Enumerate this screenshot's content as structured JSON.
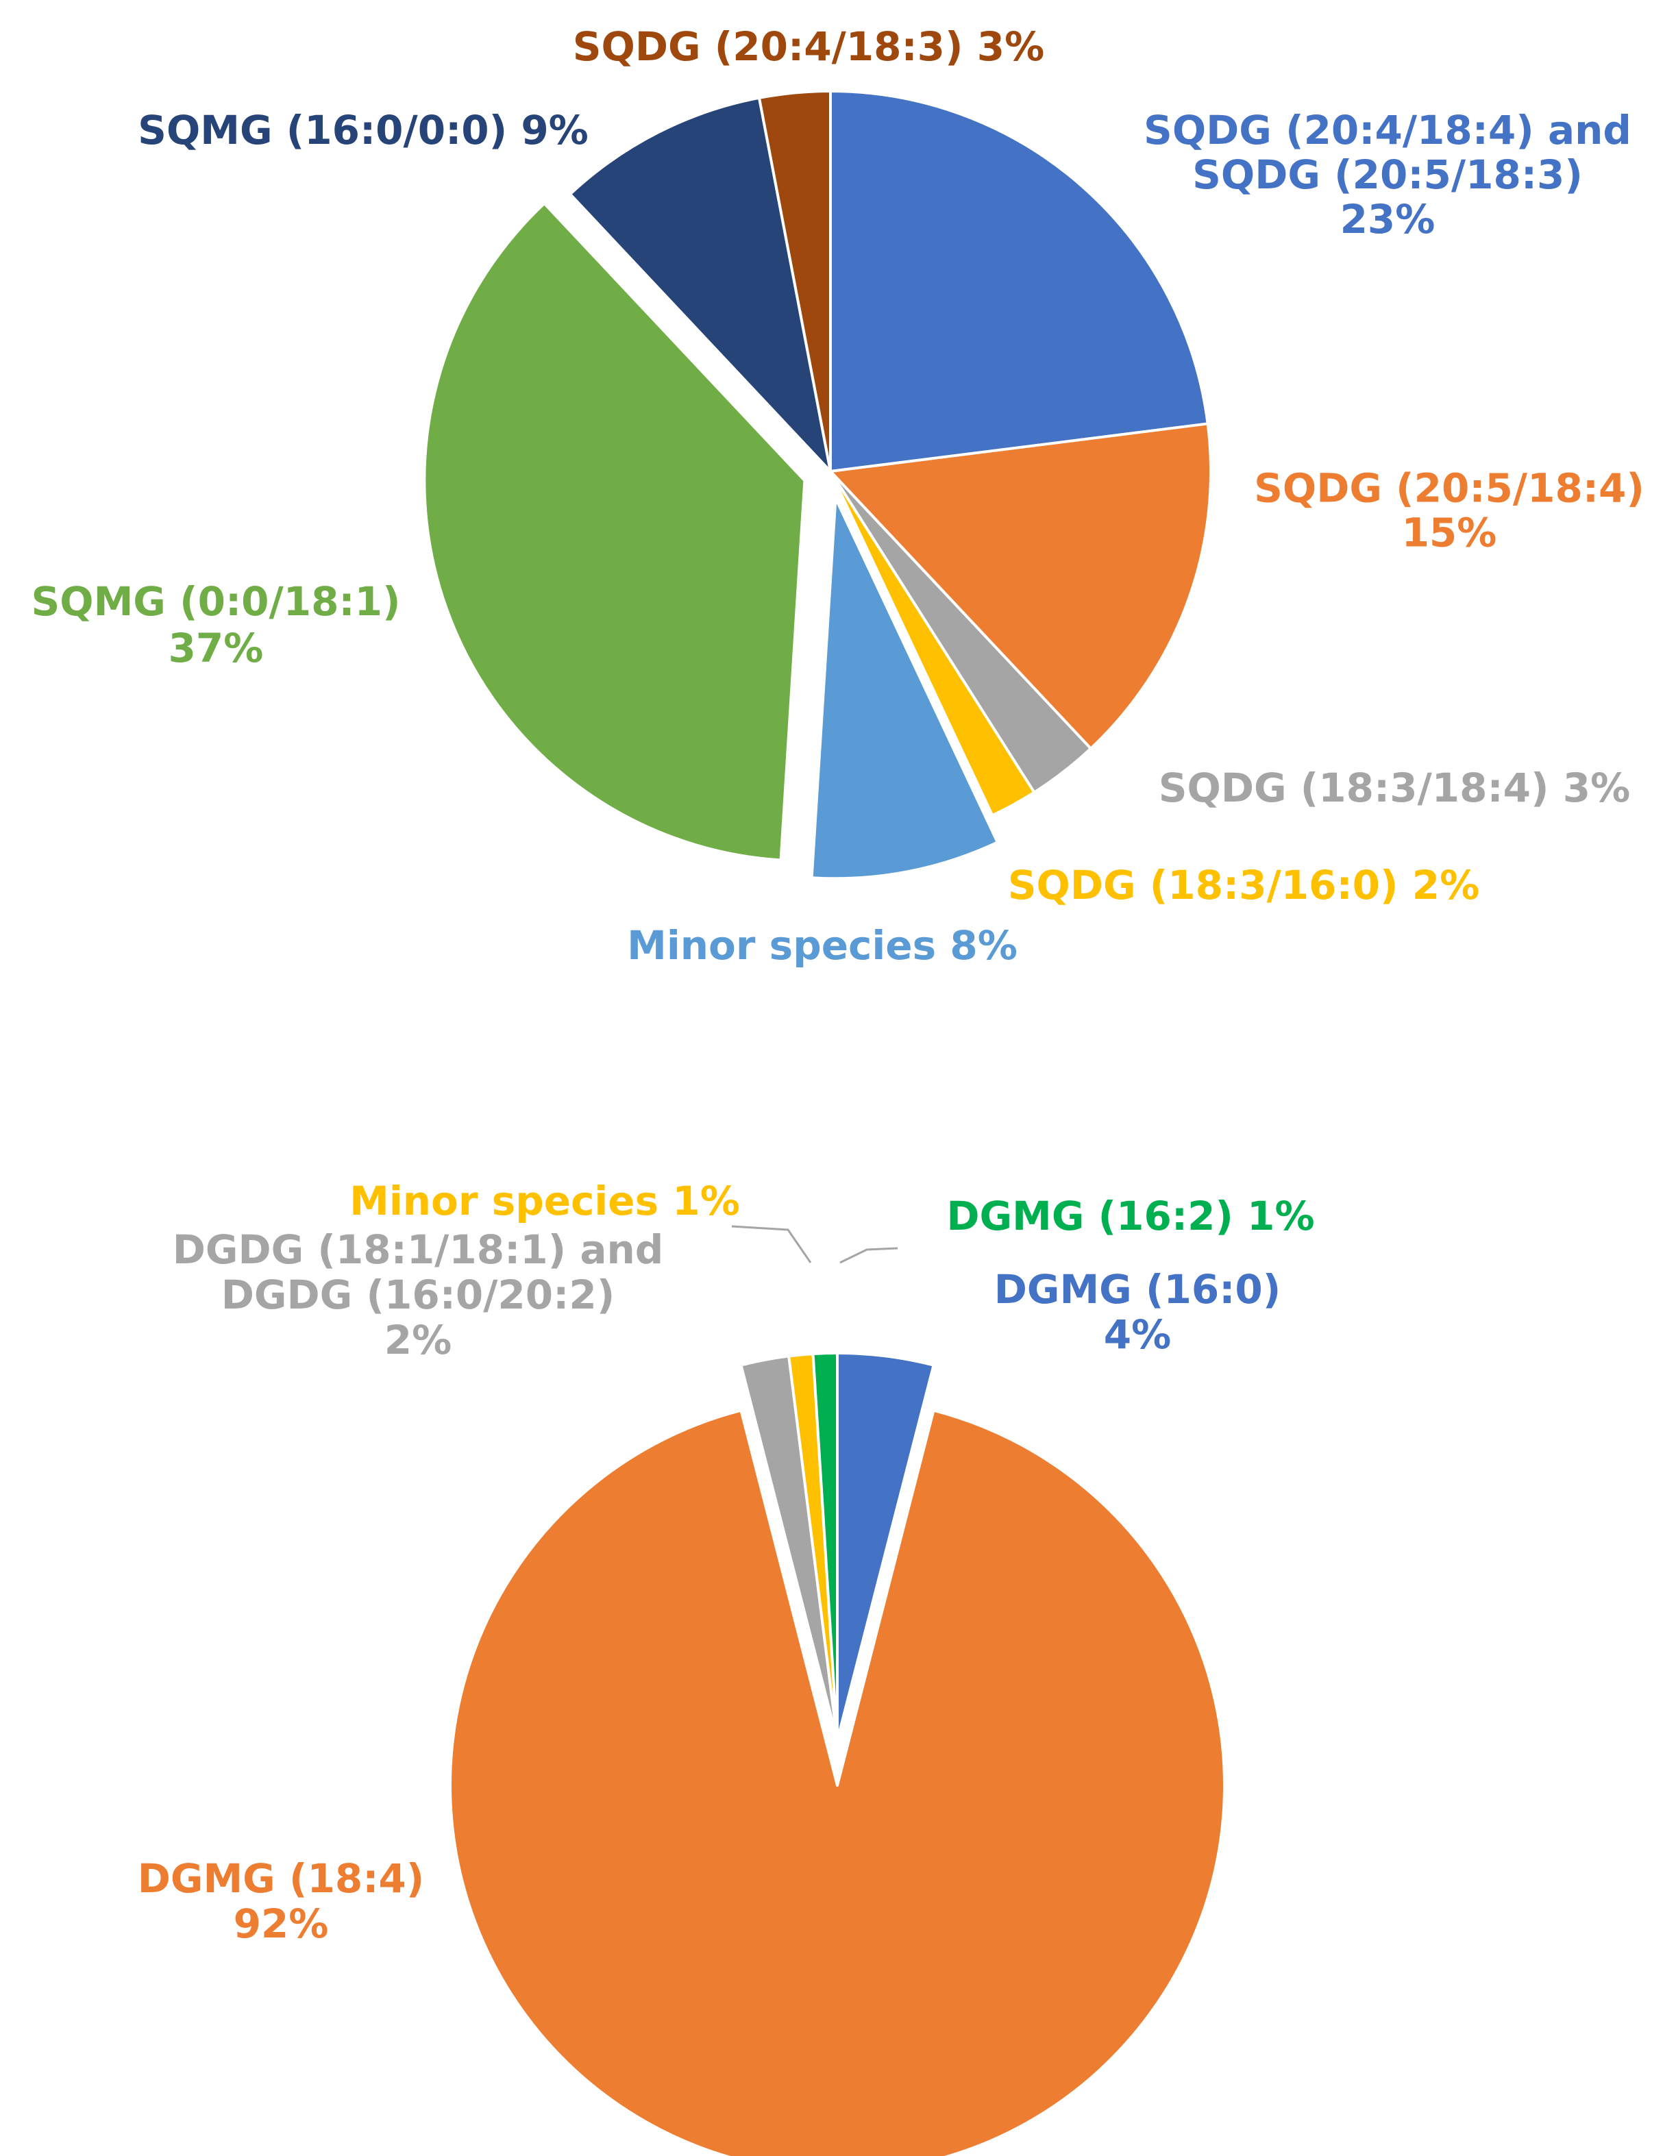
{
  "chart_data": [
    {
      "type": "pie",
      "title": "",
      "colors": {
        "SQDG (20:4/18:4) and SQDG (20:5/18:3)": "#4472C4",
        "SQDG (20:5/18:4)": "#ED7D31",
        "SQDG (18:3/18:4)": "#A5A5A5",
        "SQDG (18:3/16:0)": "#FFC000",
        "Minor species": "#5B9BD5",
        "SQMG (0:0/18:1)": "#70AD47",
        "SQMG (16:0/0:0)": "#264478",
        "SQDG (20:4/18:3)": "#9E480E"
      },
      "slices": [
        {
          "name": "SQDG (20:4/18:4) and SQDG (20:5/18:3)",
          "value": 23,
          "exploded": false,
          "label_lines": [
            "SQDG (20:4/18:4) and",
            "SQDG (20:5/18:3)",
            "23%"
          ]
        },
        {
          "name": "SQDG (20:5/18:4)",
          "value": 15,
          "exploded": false,
          "label_lines": [
            "SQDG (20:5/18:4)",
            "15%"
          ]
        },
        {
          "name": "SQDG (18:3/18:4)",
          "value": 3,
          "exploded": false,
          "label_lines": [
            "SQDG (18:3/18:4) 3%"
          ]
        },
        {
          "name": "SQDG (18:3/16:0)",
          "value": 2,
          "exploded": false,
          "label_lines": [
            "SQDG (18:3/16:0) 2%"
          ]
        },
        {
          "name": "Minor species",
          "value": 8,
          "exploded": true,
          "label_lines": [
            "Minor species 8%"
          ]
        },
        {
          "name": "SQMG (0:0/18:1)",
          "value": 37,
          "exploded": true,
          "label_lines": [
            "SQMG (0:0/18:1)",
            "37%"
          ]
        },
        {
          "name": "SQMG (16:0/0:0)",
          "value": 9,
          "exploded": false,
          "label_lines": [
            "SQMG (16:0/0:0) 9%"
          ]
        },
        {
          "name": "SQDG (20:4/18:3)",
          "value": 3,
          "exploded": false,
          "label_lines": [
            "SQDG (20:4/18:3) 3%"
          ]
        }
      ]
    },
    {
      "type": "pie",
      "title": "",
      "colors": {
        "DGMG (16:0)": "#4472C4",
        "DGMG (18:4)": "#ED7D31",
        "DGDG (18:1/18:1) and DGDG (16:0/20:2)": "#A5A5A5",
        "Minor species": "#FFC000",
        "DGMG (16:2)": "#00B050"
      },
      "slices": [
        {
          "name": "DGMG (16:0)",
          "value": 4,
          "exploded": false,
          "label_lines": [
            "DGMG (16:0)",
            "4%"
          ]
        },
        {
          "name": "DGMG (18:4)",
          "value": 92,
          "exploded": true,
          "label_lines": [
            "DGMG (18:4)",
            "92%"
          ]
        },
        {
          "name": "DGDG (18:1/18:1) and DGDG (16:0/20:2)",
          "value": 2,
          "exploded": false,
          "label_lines": [
            "DGDG (18:1/18:1) and",
            "DGDG (16:0/20:2)",
            "2%"
          ]
        },
        {
          "name": "Minor species",
          "value": 1,
          "exploded": false,
          "label_lines": [
            "Minor species 1%"
          ]
        },
        {
          "name": "DGMG (16:2)",
          "value": 1,
          "exploded": false,
          "label_lines": [
            "DGMG (16:2) 1%"
          ]
        }
      ]
    }
  ]
}
